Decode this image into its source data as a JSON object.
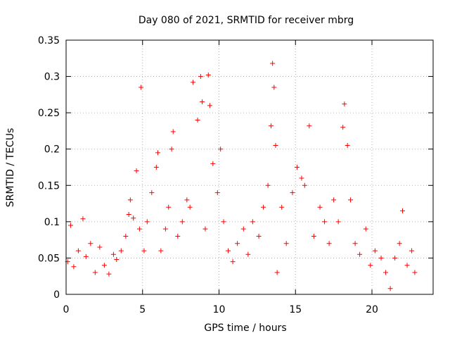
{
  "chart_data": {
    "type": "scatter",
    "title": "Day 080 of 2021, SRMTID for receiver mbrg",
    "xlabel": "GPS time / hours",
    "ylabel": "SRMTID / TECUs",
    "xlim": [
      0,
      24
    ],
    "ylim": [
      0,
      0.35
    ],
    "xticks": [
      0,
      5,
      10,
      15,
      20
    ],
    "xtick_labels": [
      "0",
      "5",
      "10",
      "15",
      "20"
    ],
    "yticks": [
      0,
      0.05,
      0.1,
      0.15,
      0.2,
      0.25,
      0.3,
      0.35
    ],
    "ytick_labels": [
      "0",
      "0.05",
      "0.1",
      "0.15",
      "0.2",
      "0.25",
      "0.3",
      "0.35"
    ],
    "grid": true,
    "marker": "+",
    "color": "#ff0000",
    "series": [
      {
        "name": "SRMTID",
        "points": [
          [
            0.1,
            0.045
          ],
          [
            0.3,
            0.095
          ],
          [
            0.5,
            0.038
          ],
          [
            0.8,
            0.06
          ],
          [
            1.1,
            0.104
          ],
          [
            1.3,
            0.052
          ],
          [
            1.6,
            0.07
          ],
          [
            1.9,
            0.03
          ],
          [
            2.2,
            0.065
          ],
          [
            2.5,
            0.04
          ],
          [
            2.8,
            0.028
          ],
          [
            3.1,
            0.055
          ],
          [
            3.3,
            0.048
          ],
          [
            3.6,
            0.06
          ],
          [
            3.9,
            0.08
          ],
          [
            4.1,
            0.11
          ],
          [
            4.2,
            0.13
          ],
          [
            4.4,
            0.105
          ],
          [
            4.6,
            0.17
          ],
          [
            4.8,
            0.09
          ],
          [
            4.9,
            0.285
          ],
          [
            5.1,
            0.06
          ],
          [
            5.3,
            0.1
          ],
          [
            5.6,
            0.14
          ],
          [
            5.9,
            0.175
          ],
          [
            6.0,
            0.195
          ],
          [
            6.2,
            0.06
          ],
          [
            6.5,
            0.09
          ],
          [
            6.7,
            0.12
          ],
          [
            6.9,
            0.2
          ],
          [
            7.0,
            0.224
          ],
          [
            7.3,
            0.08
          ],
          [
            7.6,
            0.1
          ],
          [
            7.9,
            0.13
          ],
          [
            8.1,
            0.12
          ],
          [
            8.3,
            0.292
          ],
          [
            8.6,
            0.24
          ],
          [
            8.8,
            0.3
          ],
          [
            8.9,
            0.265
          ],
          [
            9.1,
            0.09
          ],
          [
            9.3,
            0.302
          ],
          [
            9.4,
            0.26
          ],
          [
            9.6,
            0.18
          ],
          [
            9.9,
            0.14
          ],
          [
            10.1,
            0.2
          ],
          [
            10.3,
            0.1
          ],
          [
            10.6,
            0.06
          ],
          [
            10.9,
            0.045
          ],
          [
            11.2,
            0.07
          ],
          [
            11.6,
            0.09
          ],
          [
            11.9,
            0.055
          ],
          [
            12.2,
            0.1
          ],
          [
            12.6,
            0.08
          ],
          [
            12.9,
            0.12
          ],
          [
            13.2,
            0.15
          ],
          [
            13.4,
            0.232
          ],
          [
            13.5,
            0.318
          ],
          [
            13.6,
            0.285
          ],
          [
            13.7,
            0.205
          ],
          [
            13.8,
            0.03
          ],
          [
            14.1,
            0.12
          ],
          [
            14.4,
            0.07
          ],
          [
            14.8,
            0.14
          ],
          [
            15.1,
            0.175
          ],
          [
            15.4,
            0.16
          ],
          [
            15.6,
            0.15
          ],
          [
            15.9,
            0.232
          ],
          [
            16.2,
            0.08
          ],
          [
            16.6,
            0.12
          ],
          [
            16.9,
            0.1
          ],
          [
            17.2,
            0.07
          ],
          [
            17.5,
            0.13
          ],
          [
            17.8,
            0.1
          ],
          [
            18.1,
            0.23
          ],
          [
            18.2,
            0.262
          ],
          [
            18.4,
            0.205
          ],
          [
            18.6,
            0.13
          ],
          [
            18.9,
            0.07
          ],
          [
            19.2,
            0.055
          ],
          [
            19.6,
            0.09
          ],
          [
            19.9,
            0.04
          ],
          [
            20.2,
            0.06
          ],
          [
            20.6,
            0.05
          ],
          [
            20.9,
            0.03
          ],
          [
            21.2,
            0.008
          ],
          [
            21.5,
            0.05
          ],
          [
            21.8,
            0.07
          ],
          [
            22.0,
            0.115
          ],
          [
            22.3,
            0.04
          ],
          [
            22.6,
            0.06
          ],
          [
            22.8,
            0.03
          ]
        ]
      }
    ]
  }
}
